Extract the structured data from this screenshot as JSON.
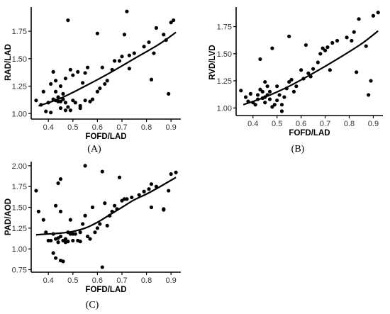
{
  "chart_data": [
    {
      "type": "scatter",
      "panel_label": "(A)",
      "xlabel": "FOFD/LAD",
      "ylabel": "RAD/LAD",
      "xlim": [
        0.33,
        0.94
      ],
      "ylim": [
        0.95,
        1.97
      ],
      "xticks": [
        "0.4",
        "0.5",
        "0.6",
        "0.7",
        "0.8",
        "0.9"
      ],
      "yticks": [
        "1.00",
        "1.25",
        "1.50",
        "1.75"
      ],
      "points": [
        [
          0.35,
          1.12
        ],
        [
          0.37,
          1.08
        ],
        [
          0.38,
          1.2
        ],
        [
          0.39,
          1.02
        ],
        [
          0.4,
          1.1
        ],
        [
          0.41,
          1.01
        ],
        [
          0.41,
          1.27
        ],
        [
          0.42,
          1.13
        ],
        [
          0.42,
          1.38
        ],
        [
          0.43,
          1.12
        ],
        [
          0.43,
          1.2
        ],
        [
          0.43,
          1.3
        ],
        [
          0.44,
          1.11
        ],
        [
          0.44,
          1.15
        ],
        [
          0.45,
          1.05
        ],
        [
          0.45,
          1.11
        ],
        [
          0.45,
          1.25
        ],
        [
          0.46,
          1.18
        ],
        [
          0.46,
          1.13
        ],
        [
          0.47,
          1.03
        ],
        [
          0.47,
          1.1
        ],
        [
          0.47,
          1.32
        ],
        [
          0.48,
          1.85
        ],
        [
          0.48,
          1.06
        ],
        [
          0.49,
          1.4
        ],
        [
          0.49,
          1.03
        ],
        [
          0.5,
          1.35
        ],
        [
          0.5,
          1.12
        ],
        [
          0.51,
          1.1
        ],
        [
          0.52,
          1.38
        ],
        [
          0.53,
          1.07
        ],
        [
          0.53,
          1.05
        ],
        [
          0.54,
          1.28
        ],
        [
          0.55,
          1.37
        ],
        [
          0.55,
          1.12
        ],
        [
          0.56,
          1.42
        ],
        [
          0.57,
          1.11
        ],
        [
          0.58,
          1.13
        ],
        [
          0.6,
          1.73
        ],
        [
          0.6,
          1.2
        ],
        [
          0.61,
          1.23
        ],
        [
          0.62,
          1.42
        ],
        [
          0.63,
          1.27
        ],
        [
          0.64,
          1.3
        ],
        [
          0.66,
          1.4
        ],
        [
          0.67,
          1.48
        ],
        [
          0.69,
          1.48
        ],
        [
          0.7,
          1.52
        ],
        [
          0.71,
          1.72
        ],
        [
          0.72,
          1.93
        ],
        [
          0.73,
          1.41
        ],
        [
          0.73,
          1.53
        ],
        [
          0.75,
          1.55
        ],
        [
          0.79,
          1.61
        ],
        [
          0.81,
          1.65
        ],
        [
          0.82,
          1.31
        ],
        [
          0.83,
          1.55
        ],
        [
          0.84,
          1.78
        ],
        [
          0.87,
          1.72
        ],
        [
          0.88,
          1.67
        ],
        [
          0.89,
          1.18
        ],
        [
          0.9,
          1.83
        ],
        [
          0.91,
          1.85
        ]
      ],
      "fit": [
        [
          0.36,
          1.07
        ],
        [
          0.45,
          1.14
        ],
        [
          0.55,
          1.25
        ],
        [
          0.65,
          1.37
        ],
        [
          0.75,
          1.5
        ],
        [
          0.85,
          1.63
        ],
        [
          0.92,
          1.74
        ]
      ]
    },
    {
      "type": "scatter",
      "panel_label": "(B)",
      "xlabel": "FOFD/LAD",
      "ylabel": "RVD/LVD",
      "xlim": [
        0.33,
        0.94
      ],
      "ylim": [
        0.93,
        1.93
      ],
      "xticks": [
        "0.4",
        "0.5",
        "0.6",
        "0.7",
        "0.8",
        "0.9"
      ],
      "yticks": [
        "1.00",
        "1.25",
        "1.50",
        "1.75"
      ],
      "points": [
        [
          0.35,
          1.16
        ],
        [
          0.37,
          1.1
        ],
        [
          0.38,
          1.06
        ],
        [
          0.39,
          1.13
        ],
        [
          0.4,
          1.05
        ],
        [
          0.41,
          1.03
        ],
        [
          0.42,
          1.08
        ],
        [
          0.42,
          1.12
        ],
        [
          0.43,
          1.45
        ],
        [
          0.43,
          1.17
        ],
        [
          0.44,
          1.15
        ],
        [
          0.44,
          1.09
        ],
        [
          0.45,
          1.1
        ],
        [
          0.45,
          1.24
        ],
        [
          0.45,
          1.05
        ],
        [
          0.46,
          1.12
        ],
        [
          0.46,
          1.2
        ],
        [
          0.47,
          1.15
        ],
        [
          0.47,
          1.08
        ],
        [
          0.48,
          1.55
        ],
        [
          0.48,
          1.01
        ],
        [
          0.49,
          1.03
        ],
        [
          0.5,
          1.07
        ],
        [
          0.5,
          1.2
        ],
        [
          0.51,
          1.12
        ],
        [
          0.52,
          0.97
        ],
        [
          0.52,
          1.03
        ],
        [
          0.53,
          1.1
        ],
        [
          0.54,
          1.18
        ],
        [
          0.55,
          1.66
        ],
        [
          0.55,
          1.24
        ],
        [
          0.56,
          1.26
        ],
        [
          0.57,
          1.15
        ],
        [
          0.58,
          1.2
        ],
        [
          0.6,
          1.35
        ],
        [
          0.61,
          1.27
        ],
        [
          0.62,
          1.58
        ],
        [
          0.63,
          1.32
        ],
        [
          0.64,
          1.29
        ],
        [
          0.65,
          1.36
        ],
        [
          0.67,
          1.42
        ],
        [
          0.68,
          1.5
        ],
        [
          0.69,
          1.55
        ],
        [
          0.7,
          1.53
        ],
        [
          0.71,
          1.56
        ],
        [
          0.72,
          1.35
        ],
        [
          0.73,
          1.6
        ],
        [
          0.75,
          1.62
        ],
        [
          0.79,
          1.65
        ],
        [
          0.81,
          1.62
        ],
        [
          0.82,
          1.7
        ],
        [
          0.83,
          1.33
        ],
        [
          0.84,
          1.82
        ],
        [
          0.87,
          1.57
        ],
        [
          0.88,
          1.12
        ],
        [
          0.89,
          1.25
        ],
        [
          0.9,
          1.85
        ],
        [
          0.92,
          1.88
        ]
      ],
      "fit": [
        [
          0.36,
          1.03
        ],
        [
          0.45,
          1.1
        ],
        [
          0.55,
          1.2
        ],
        [
          0.65,
          1.32
        ],
        [
          0.75,
          1.45
        ],
        [
          0.85,
          1.59
        ],
        [
          0.92,
          1.71
        ]
      ]
    },
    {
      "type": "scatter",
      "panel_label": "(C)",
      "xlabel": "FOFD/LAD",
      "ylabel": "PAD/AOD",
      "xlim": [
        0.33,
        0.94
      ],
      "ylim": [
        0.72,
        2.05
      ],
      "xticks": [
        "0.4",
        "0.5",
        "0.6",
        "0.7",
        "0.8",
        "0.9"
      ],
      "yticks": [
        "0.75",
        "1.00",
        "1.25",
        "1.50",
        "1.75",
        "2.00"
      ],
      "points": [
        [
          0.35,
          1.7
        ],
        [
          0.36,
          1.45
        ],
        [
          0.38,
          1.35
        ],
        [
          0.39,
          1.2
        ],
        [
          0.4,
          1.1
        ],
        [
          0.41,
          1.1
        ],
        [
          0.42,
          0.95
        ],
        [
          0.42,
          1.18
        ],
        [
          0.43,
          1.52
        ],
        [
          0.43,
          1.12
        ],
        [
          0.43,
          0.89
        ],
        [
          0.44,
          1.79
        ],
        [
          0.44,
          1.13
        ],
        [
          0.44,
          1.08
        ],
        [
          0.45,
          1.84
        ],
        [
          0.45,
          1.45
        ],
        [
          0.45,
          1.15
        ],
        [
          0.45,
          0.86
        ],
        [
          0.46,
          1.1
        ],
        [
          0.46,
          0.85
        ],
        [
          0.47,
          1.12
        ],
        [
          0.47,
          1.08
        ],
        [
          0.48,
          1.2
        ],
        [
          0.48,
          1.09
        ],
        [
          0.49,
          1.35
        ],
        [
          0.49,
          1.18
        ],
        [
          0.5,
          1.18
        ],
        [
          0.5,
          1.1
        ],
        [
          0.51,
          1.18
        ],
        [
          0.52,
          1.1
        ],
        [
          0.53,
          1.2
        ],
        [
          0.53,
          1.09
        ],
        [
          0.54,
          1.3
        ],
        [
          0.55,
          1.4
        ],
        [
          0.55,
          2.0
        ],
        [
          0.56,
          1.15
        ],
        [
          0.57,
          1.12
        ],
        [
          0.58,
          1.5
        ],
        [
          0.59,
          1.2
        ],
        [
          0.6,
          1.25
        ],
        [
          0.61,
          1.3
        ],
        [
          0.62,
          1.93
        ],
        [
          0.62,
          0.78
        ],
        [
          0.63,
          1.55
        ],
        [
          0.64,
          1.28
        ],
        [
          0.65,
          1.4
        ],
        [
          0.66,
          1.45
        ],
        [
          0.67,
          1.52
        ],
        [
          0.68,
          1.48
        ],
        [
          0.69,
          1.86
        ],
        [
          0.7,
          1.58
        ],
        [
          0.71,
          1.6
        ],
        [
          0.72,
          1.6
        ],
        [
          0.74,
          1.62
        ],
        [
          0.77,
          1.65
        ],
        [
          0.79,
          1.69
        ],
        [
          0.81,
          1.72
        ],
        [
          0.82,
          1.78
        ],
        [
          0.82,
          1.5
        ],
        [
          0.84,
          1.75
        ],
        [
          0.87,
          1.48
        ],
        [
          0.87,
          1.47
        ],
        [
          0.89,
          1.7
        ],
        [
          0.9,
          1.9
        ],
        [
          0.92,
          1.92
        ]
      ],
      "fit": [
        [
          0.35,
          1.17
        ],
        [
          0.4,
          1.18
        ],
        [
          0.45,
          1.19
        ],
        [
          0.5,
          1.21
        ],
        [
          0.55,
          1.25
        ],
        [
          0.6,
          1.32
        ],
        [
          0.65,
          1.41
        ],
        [
          0.7,
          1.5
        ],
        [
          0.75,
          1.59
        ],
        [
          0.8,
          1.66
        ],
        [
          0.85,
          1.74
        ],
        [
          0.92,
          1.86
        ]
      ]
    }
  ]
}
